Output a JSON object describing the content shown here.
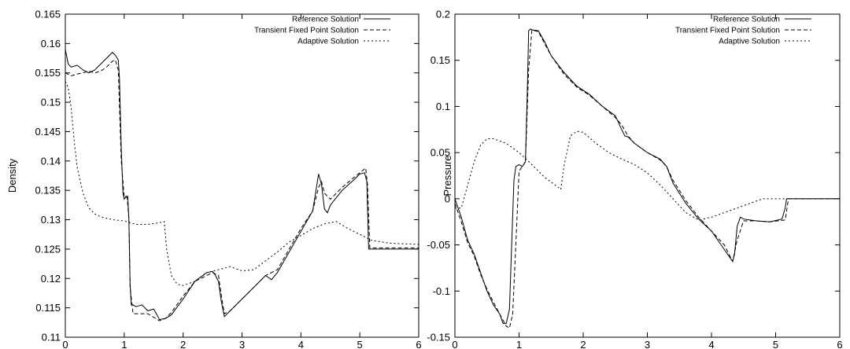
{
  "chart_data": [
    {
      "type": "line",
      "title": "",
      "xlabel": "",
      "ylabel": "Density",
      "xlim": [
        0,
        6
      ],
      "ylim": [
        0.11,
        0.165
      ],
      "xticks": [
        "0",
        "1",
        "2",
        "3",
        "4",
        "5",
        "6"
      ],
      "yticks": [
        "0.11",
        "0.115",
        "0.12",
        "0.125",
        "0.13",
        "0.135",
        "0.14",
        "0.145",
        "0.15",
        "0.155",
        "0.16",
        "0.165"
      ],
      "grid": false,
      "legend_position": "top-right",
      "series": [
        {
          "name": "Reference Solution",
          "style": "solid",
          "x": [
            0,
            0.05,
            0.1,
            0.2,
            0.3,
            0.4,
            0.5,
            0.6,
            0.7,
            0.8,
            0.85,
            0.9,
            0.92,
            0.95,
            0.98,
            1.0,
            1.03,
            1.06,
            1.08,
            1.1,
            1.12,
            1.15,
            1.2,
            1.3,
            1.4,
            1.5,
            1.6,
            1.7,
            1.8,
            2.0,
            2.2,
            2.4,
            2.5,
            2.55,
            2.6,
            2.65,
            2.7,
            2.8,
            3.0,
            3.2,
            3.4,
            3.5,
            3.6,
            3.8,
            4.0,
            4.2,
            4.3,
            4.35,
            4.4,
            4.45,
            4.5,
            4.7,
            4.9,
            5.0,
            5.08,
            5.12,
            5.15,
            6.0
          ],
          "values": [
            0.159,
            0.1565,
            0.156,
            0.1563,
            0.1555,
            0.155,
            0.1555,
            0.1565,
            0.1575,
            0.1585,
            0.158,
            0.1572,
            0.154,
            0.142,
            0.1345,
            0.1335,
            0.134,
            0.134,
            0.13,
            0.119,
            0.1155,
            0.1155,
            0.1152,
            0.1155,
            0.1145,
            0.1148,
            0.113,
            0.1132,
            0.1138,
            0.1165,
            0.1195,
            0.121,
            0.1212,
            0.1205,
            0.1195,
            0.116,
            0.1135,
            0.1145,
            0.1165,
            0.1185,
            0.1205,
            0.1198,
            0.121,
            0.1245,
            0.128,
            0.1315,
            0.1378,
            0.136,
            0.1318,
            0.1312,
            0.1325,
            0.135,
            0.1368,
            0.1378,
            0.138,
            0.1365,
            0.125,
            0.125
          ]
        },
        {
          "name": "Transient Fixed Point Solution",
          "style": "dashed",
          "x": [
            0,
            0.1,
            0.2,
            0.3,
            0.4,
            0.5,
            0.6,
            0.7,
            0.8,
            0.85,
            0.9,
            0.95,
            1.0,
            1.05,
            1.08,
            1.1,
            1.15,
            1.2,
            1.4,
            1.6,
            1.7,
            1.8,
            2.0,
            2.2,
            2.4,
            2.5,
            2.6,
            2.65,
            2.7,
            2.8,
            3.0,
            3.2,
            3.4,
            3.6,
            3.8,
            4.0,
            4.2,
            4.3,
            4.35,
            4.4,
            4.5,
            4.7,
            4.9,
            5.0,
            5.1,
            5.13,
            5.17,
            6.0
          ],
          "values": [
            0.155,
            0.1545,
            0.1548,
            0.155,
            0.1553,
            0.155,
            0.1553,
            0.156,
            0.157,
            0.1572,
            0.1555,
            0.14,
            0.1338,
            0.1338,
            0.13,
            0.1185,
            0.114,
            0.114,
            0.114,
            0.1128,
            0.1132,
            0.1142,
            0.117,
            0.1195,
            0.1205,
            0.121,
            0.1205,
            0.117,
            0.114,
            0.1145,
            0.1165,
            0.1185,
            0.1205,
            0.1215,
            0.125,
            0.1285,
            0.1315,
            0.1355,
            0.1365,
            0.1345,
            0.1335,
            0.1355,
            0.1372,
            0.138,
            0.1388,
            0.136,
            0.1252,
            0.1252
          ]
        },
        {
          "name": "Adaptive Solution",
          "style": "dotted",
          "x": [
            0,
            0.05,
            0.1,
            0.15,
            0.2,
            0.3,
            0.4,
            0.5,
            0.6,
            0.8,
            1.0,
            1.2,
            1.4,
            1.6,
            1.68,
            1.72,
            1.8,
            1.9,
            2.0,
            2.2,
            2.4,
            2.6,
            2.8,
            3.0,
            3.2,
            3.4,
            3.6,
            3.8,
            4.0,
            4.2,
            4.4,
            4.6,
            4.8,
            5.0,
            5.2,
            5.5,
            6.0
          ],
          "values": [
            0.1535,
            0.1525,
            0.149,
            0.1435,
            0.139,
            0.1345,
            0.132,
            0.131,
            0.1305,
            0.13,
            0.1298,
            0.1292,
            0.1292,
            0.1295,
            0.1297,
            0.125,
            0.1205,
            0.119,
            0.1188,
            0.1195,
            0.121,
            0.1215,
            0.122,
            0.1213,
            0.1215,
            0.123,
            0.1245,
            0.1262,
            0.1273,
            0.1285,
            0.1293,
            0.1297,
            0.1285,
            0.1275,
            0.1265,
            0.126,
            0.1258
          ]
        }
      ]
    },
    {
      "type": "line",
      "title": "",
      "xlabel": "",
      "ylabel": "Pressure",
      "xlim": [
        0,
        6
      ],
      "ylim": [
        -0.15,
        0.2
      ],
      "xticks": [
        "0",
        "1",
        "2",
        "3",
        "4",
        "5",
        "6"
      ],
      "yticks": [
        "-0.15",
        "-0.1",
        "-0.05",
        "0",
        "0.05",
        "0.1",
        "0.15",
        "0.2"
      ],
      "grid": false,
      "legend_position": "top-right",
      "series": [
        {
          "name": "Reference Solution",
          "style": "solid",
          "x": [
            0,
            0.1,
            0.2,
            0.3,
            0.4,
            0.5,
            0.6,
            0.7,
            0.75,
            0.8,
            0.85,
            0.88,
            0.92,
            0.95,
            1.0,
            1.05,
            1.1,
            1.13,
            1.15,
            1.18,
            1.2,
            1.3,
            1.4,
            1.5,
            1.7,
            1.9,
            2.1,
            2.3,
            2.5,
            2.6,
            2.65,
            2.7,
            2.8,
            3.0,
            3.2,
            3.3,
            3.4,
            3.6,
            3.8,
            4.0,
            4.2,
            4.3,
            4.33,
            4.36,
            4.4,
            4.45,
            4.5,
            4.7,
            4.9,
            5.1,
            5.15,
            5.17,
            6.0
          ],
          "values": [
            0.0,
            -0.02,
            -0.045,
            -0.06,
            -0.08,
            -0.1,
            -0.115,
            -0.125,
            -0.135,
            -0.135,
            -0.12,
            -0.06,
            0.02,
            0.035,
            0.037,
            0.035,
            0.04,
            0.12,
            0.182,
            0.184,
            0.183,
            0.182,
            0.17,
            0.155,
            0.137,
            0.122,
            0.113,
            0.1,
            0.09,
            0.075,
            0.068,
            0.067,
            0.06,
            0.05,
            0.043,
            0.035,
            0.017,
            -0.005,
            -0.022,
            -0.035,
            -0.055,
            -0.065,
            -0.068,
            -0.06,
            -0.03,
            -0.02,
            -0.022,
            -0.024,
            -0.025,
            -0.022,
            -0.01,
            0.0,
            0.0
          ]
        },
        {
          "name": "Transient Fixed Point Solution",
          "style": "dashed",
          "x": [
            0,
            0.1,
            0.2,
            0.3,
            0.4,
            0.5,
            0.6,
            0.7,
            0.8,
            0.85,
            0.9,
            0.95,
            1.0,
            1.05,
            1.1,
            1.15,
            1.2,
            1.3,
            1.4,
            1.5,
            1.7,
            1.9,
            2.1,
            2.3,
            2.5,
            2.6,
            2.7,
            2.8,
            3.0,
            3.2,
            3.3,
            3.4,
            3.6,
            3.8,
            4.0,
            4.2,
            4.33,
            4.4,
            4.5,
            4.7,
            4.9,
            5.15,
            5.2,
            6.0
          ],
          "values": [
            -0.005,
            -0.025,
            -0.048,
            -0.062,
            -0.082,
            -0.098,
            -0.112,
            -0.125,
            -0.138,
            -0.14,
            -0.125,
            -0.05,
            0.03,
            0.035,
            0.04,
            0.14,
            0.183,
            0.181,
            0.168,
            0.155,
            0.135,
            0.121,
            0.112,
            0.1,
            0.088,
            0.08,
            0.068,
            0.06,
            0.05,
            0.042,
            0.035,
            0.02,
            -0.002,
            -0.02,
            -0.035,
            -0.05,
            -0.068,
            -0.045,
            -0.024,
            -0.024,
            -0.025,
            -0.023,
            0.0,
            0.0
          ]
        },
        {
          "name": "Adaptive Solution",
          "style": "dotted",
          "x": [
            0,
            0.1,
            0.2,
            0.3,
            0.4,
            0.5,
            0.6,
            0.8,
            1.0,
            1.2,
            1.4,
            1.6,
            1.65,
            1.7,
            1.8,
            1.9,
            2.0,
            2.2,
            2.4,
            2.6,
            2.8,
            3.0,
            3.2,
            3.4,
            3.6,
            3.8,
            4.0,
            4.2,
            4.4,
            4.6,
            4.8,
            5.0,
            5.2,
            5.5,
            6.0
          ],
          "values": [
            -0.01,
            -0.01,
            0.015,
            0.04,
            0.058,
            0.065,
            0.065,
            0.06,
            0.05,
            0.037,
            0.023,
            0.013,
            0.01,
            0.035,
            0.068,
            0.073,
            0.072,
            0.06,
            0.05,
            0.043,
            0.037,
            0.028,
            0.015,
            0.0,
            -0.015,
            -0.023,
            -0.02,
            -0.015,
            -0.01,
            -0.005,
            0.0,
            0.0,
            0.0,
            0.0,
            0.0
          ]
        }
      ]
    }
  ]
}
